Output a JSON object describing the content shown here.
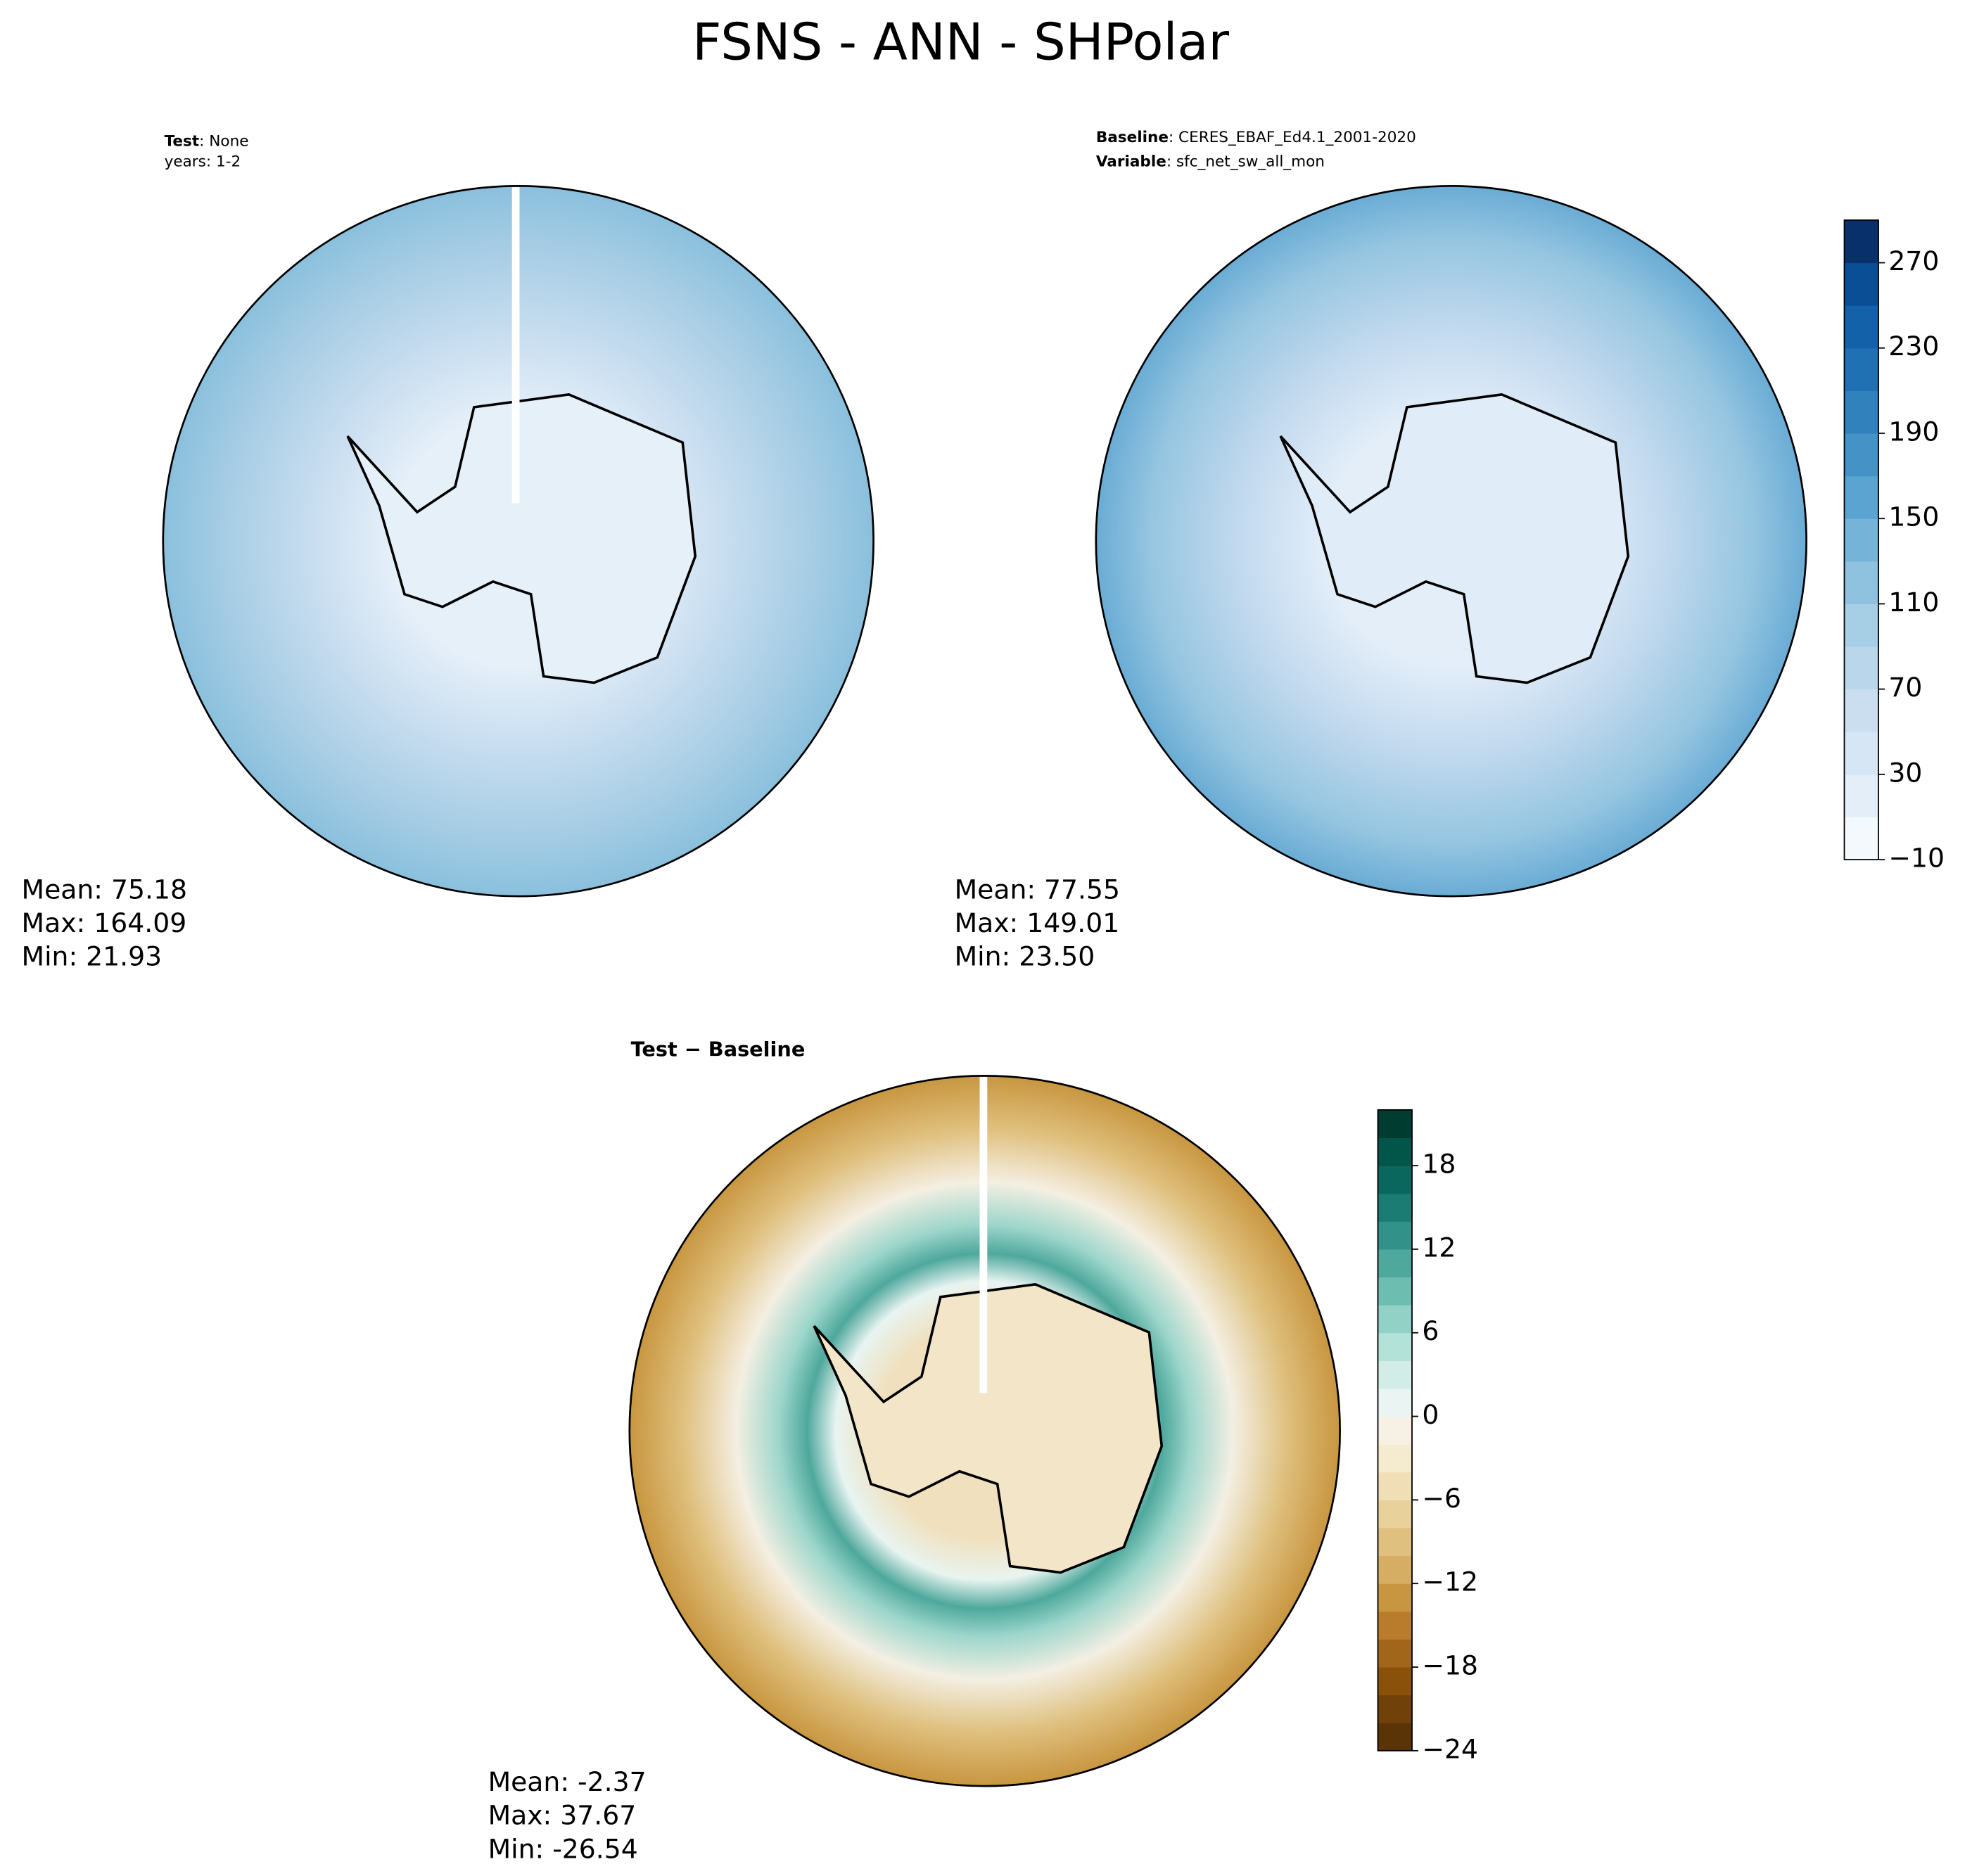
{
  "chart_data": {
    "type": "polar-maps",
    "title": "FSNS - ANN - SHPolar",
    "panels": [
      {
        "label_bold": "Test",
        "label_text": ": None",
        "label_line2": "years: 1-2",
        "stats": [
          "Mean: 75.18",
          "Max: 164.09",
          "Min: 21.93"
        ]
      },
      {
        "label_bold": "Baseline",
        "label_text": ": CERES_EBAF_Ed4.1_2001-2020",
        "label_bold2": "Variable",
        "label_text2": ": sfc_net_sw_all_mon",
        "stats": [
          "Mean: 77.55",
          "Max: 149.01",
          "Min: 23.50"
        ]
      },
      {
        "label_bold": "Test − Baseline",
        "stats": [
          "Mean: -2.37",
          "Max: 37.67",
          "Min: -26.54"
        ]
      }
    ],
    "colorbars": [
      {
        "clim": [
          -10,
          290
        ],
        "ticks": [
          {
            "value": -10,
            "label": "−10"
          },
          30,
          70,
          110,
          150,
          190,
          230,
          270
        ],
        "colors": [
          "#f4f9fe",
          "#e3eef9",
          "#d6e6f4",
          "#cadef0",
          "#bad6eb",
          "#a6cee4",
          "#8fc2de",
          "#75b4d8",
          "#5ba3d0",
          "#4592c6",
          "#3181bd",
          "#2070b4",
          "#1361a9",
          "#0a4f95",
          "#08306b"
        ]
      },
      {
        "clim": [
          -24,
          22
        ],
        "ticks": [
          {
            "value": -24,
            "label": "−24"
          },
          {
            "value": -18,
            "label": "−18"
          },
          {
            "value": -12,
            "label": "−12"
          },
          {
            "value": -6,
            "label": "−6"
          },
          0,
          6,
          12,
          18
        ],
        "colors": [
          "#5a3406",
          "#704108",
          "#8a510a",
          "#a2661a",
          "#b87c2c",
          "#c89640",
          "#d5ad63",
          "#dfc07e",
          "#e9d19c",
          "#f0dfb6",
          "#f5ebcf",
          "#f6f1e4",
          "#eaf5f3",
          "#d2ede8",
          "#b2e2d8",
          "#92d2c6",
          "#6dbdb1",
          "#4ea89c",
          "#32928a",
          "#1a7c73",
          "#0a675d",
          "#015549",
          "#003c30"
        ]
      }
    ]
  }
}
